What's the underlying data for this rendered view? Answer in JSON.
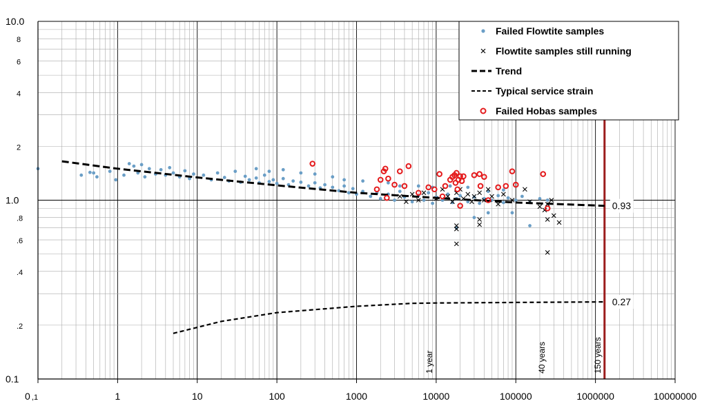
{
  "chart_data": {
    "type": "scatter",
    "x_scale": "log",
    "y_scale": "log",
    "xlim": [
      0.1,
      10000000
    ],
    "ylim": [
      0.1,
      10.0
    ],
    "grid": true,
    "legend_position": "top-right",
    "x_tick_labels": [
      "0,1",
      "1",
      "10",
      "100",
      "1000",
      "10000",
      "100000",
      "1000000",
      "10000000"
    ],
    "x_tick_values": [
      0.1,
      1,
      10,
      100,
      1000,
      10000,
      100000,
      1000000,
      10000000
    ],
    "y_tick_labels": [
      "0.1",
      ".2",
      ".4",
      ".6",
      ".8",
      "1.0",
      "2",
      "4",
      "6",
      "8",
      "10.0"
    ],
    "y_tick_values": [
      0.1,
      0.2,
      0.4,
      0.6,
      0.8,
      1.0,
      2,
      4,
      6,
      8,
      10
    ],
    "y_tick_small": [
      false,
      true,
      true,
      true,
      true,
      false,
      true,
      true,
      true,
      true,
      false
    ],
    "colors": {
      "failed_flowtite": "#6a9ec6",
      "running": "#000000",
      "hobas": "#e41a1c",
      "marker_line": "#9b1c1c",
      "grid": "#a8a8a8"
    },
    "series": [
      {
        "name": "Failed Flowtite samples",
        "kind": "points",
        "points": [
          [
            0.1,
            1.5
          ],
          [
            0.35,
            1.38
          ],
          [
            0.45,
            1.43
          ],
          [
            0.5,
            1.42
          ],
          [
            0.55,
            1.35
          ],
          [
            0.8,
            1.45
          ],
          [
            0.95,
            1.3
          ],
          [
            1.2,
            1.38
          ],
          [
            1.4,
            1.6
          ],
          [
            1.6,
            1.55
          ],
          [
            1.8,
            1.42
          ],
          [
            2,
            1.58
          ],
          [
            2.2,
            1.35
          ],
          [
            2.5,
            1.5
          ],
          [
            3,
            1.4
          ],
          [
            3.5,
            1.48
          ],
          [
            4,
            1.38
          ],
          [
            4.5,
            1.52
          ],
          [
            5,
            1.42
          ],
          [
            6,
            1.35
          ],
          [
            7,
            1.46
          ],
          [
            8,
            1.32
          ],
          [
            9,
            1.4
          ],
          [
            12,
            1.38
          ],
          [
            15,
            1.3
          ],
          [
            18,
            1.42
          ],
          [
            22,
            1.34
          ],
          [
            25,
            1.28
          ],
          [
            30,
            1.45
          ],
          [
            35,
            1.26
          ],
          [
            40,
            1.36
          ],
          [
            45,
            1.3
          ],
          [
            55,
            1.33
          ],
          [
            60,
            1.25
          ],
          [
            70,
            1.38
          ],
          [
            80,
            1.27
          ],
          [
            90,
            1.3
          ],
          [
            100,
            1.24
          ],
          [
            120,
            1.32
          ],
          [
            140,
            1.22
          ],
          [
            160,
            1.28
          ],
          [
            200,
            1.26
          ],
          [
            250,
            1.2
          ],
          [
            300,
            1.25
          ],
          [
            350,
            1.17
          ],
          [
            400,
            1.22
          ],
          [
            500,
            1.18
          ],
          [
            600,
            1.13
          ],
          [
            700,
            1.2
          ],
          [
            800,
            1.1
          ],
          [
            900,
            1.16
          ],
          [
            1000,
            1.08
          ],
          [
            1200,
            1.12
          ],
          [
            1500,
            1.05
          ],
          [
            1800,
            1.1
          ],
          [
            2000,
            1.02
          ],
          [
            2500,
            1.08
          ],
          [
            3000,
            1.0
          ],
          [
            3500,
            1.12
          ],
          [
            4000,
            1.04
          ],
          [
            5000,
            0.98
          ],
          [
            6000,
            1.06
          ],
          [
            7000,
            1.0
          ],
          [
            8000,
            1.1
          ],
          [
            9000,
            0.96
          ],
          [
            10000,
            1.04
          ],
          [
            12000,
            1.0
          ],
          [
            14000,
            1.08
          ],
          [
            16000,
            0.97
          ],
          [
            18000,
            1.02
          ],
          [
            20000,
            1.06
          ],
          [
            25000,
            0.98
          ],
          [
            30000,
            1.04
          ],
          [
            35000,
            0.96
          ],
          [
            40000,
            1.02
          ],
          [
            50000,
            1.0
          ],
          [
            60000,
            1.06
          ],
          [
            70000,
            0.97
          ],
          [
            80000,
            1.03
          ],
          [
            100000,
            1.0
          ],
          [
            120000,
            1.05
          ],
          [
            150000,
            0.97
          ],
          [
            200000,
            1.02
          ],
          [
            250000,
            1.0
          ],
          [
            18000,
            0.7
          ],
          [
            30000,
            0.8
          ],
          [
            45000,
            0.85
          ],
          [
            90000,
            0.85
          ],
          [
            150000,
            0.72
          ],
          [
            55,
            1.5
          ],
          [
            80,
            1.45
          ],
          [
            120,
            1.48
          ],
          [
            200,
            1.42
          ],
          [
            300,
            1.4
          ],
          [
            500,
            1.35
          ],
          [
            700,
            1.3
          ],
          [
            1200,
            1.28
          ],
          [
            2500,
            1.25
          ],
          [
            3500,
            1.2
          ],
          [
            6000,
            1.2
          ],
          [
            9000,
            1.18
          ],
          [
            15000,
            1.2
          ],
          [
            25000,
            1.18
          ],
          [
            45000,
            1.12
          ],
          [
            70000,
            1.14
          ]
        ]
      },
      {
        "name": "Flowtite samples still running",
        "kind": "crosses",
        "points": [
          [
            3500,
            1.05
          ],
          [
            4200,
            0.98
          ],
          [
            5000,
            1.08
          ],
          [
            6000,
            1.0
          ],
          [
            7000,
            1.1
          ],
          [
            10000,
            1.02
          ],
          [
            12000,
            1.15
          ],
          [
            14000,
            1.05
          ],
          [
            16000,
            0.98
          ],
          [
            18000,
            1.1
          ],
          [
            20000,
            1.15
          ],
          [
            22000,
            1.02
          ],
          [
            25000,
            1.08
          ],
          [
            28000,
            0.98
          ],
          [
            30000,
            1.05
          ],
          [
            35000,
            1.1
          ],
          [
            40000,
            1.0
          ],
          [
            45000,
            1.15
          ],
          [
            50000,
            1.05
          ],
          [
            60000,
            0.95
          ],
          [
            70000,
            1.08
          ],
          [
            90000,
            1.0
          ],
          [
            130000,
            1.15
          ],
          [
            150000,
            0.98
          ],
          [
            250000,
            0.95
          ],
          [
            280000,
            1.0
          ],
          [
            300000,
            0.82
          ],
          [
            350000,
            0.75
          ],
          [
            250000,
            0.78
          ],
          [
            18000,
            0.72
          ],
          [
            18000,
            0.69
          ],
          [
            18000,
            0.57
          ],
          [
            35000,
            0.78
          ],
          [
            35000,
            0.73
          ],
          [
            250000,
            0.51
          ],
          [
            200000,
            0.92
          ],
          [
            230000,
            0.88
          ]
        ]
      },
      {
        "name": "Trend",
        "kind": "thick-dashed",
        "points": [
          [
            0.2,
            1.65
          ],
          [
            1,
            1.5
          ],
          [
            10,
            1.34
          ],
          [
            100,
            1.21
          ],
          [
            1000,
            1.1
          ],
          [
            10000,
            1.03
          ],
          [
            100000,
            0.97
          ],
          [
            1300000,
            0.93
          ]
        ]
      },
      {
        "name": "Typical service strain",
        "kind": "dashed",
        "points": [
          [
            5,
            0.18
          ],
          [
            20,
            0.21
          ],
          [
            100,
            0.235
          ],
          [
            1000,
            0.255
          ],
          [
            5000,
            0.265
          ],
          [
            10000,
            0.266
          ],
          [
            100000,
            0.268
          ],
          [
            1300000,
            0.27
          ]
        ]
      },
      {
        "name": "Failed Hobas samples",
        "kind": "circles",
        "points": [
          [
            280,
            1.6
          ],
          [
            1800,
            1.15
          ],
          [
            2000,
            1.3
          ],
          [
            2200,
            1.45
          ],
          [
            2300,
            1.5
          ],
          [
            2400,
            1.03
          ],
          [
            2500,
            1.32
          ],
          [
            3000,
            1.22
          ],
          [
            3500,
            1.45
          ],
          [
            4000,
            1.2
          ],
          [
            4500,
            1.55
          ],
          [
            6000,
            1.1
          ],
          [
            8000,
            1.18
          ],
          [
            9500,
            1.15
          ],
          [
            11000,
            1.4
          ],
          [
            12000,
            1.05
          ],
          [
            13000,
            1.2
          ],
          [
            15000,
            1.3
          ],
          [
            16000,
            1.35
          ],
          [
            17000,
            1.38
          ],
          [
            17500,
            1.25
          ],
          [
            18000,
            1.42
          ],
          [
            18500,
            1.15
          ],
          [
            19000,
            1.3
          ],
          [
            20000,
            1.36
          ],
          [
            21000,
            1.28
          ],
          [
            22000,
            1.36
          ],
          [
            20000,
            0.93
          ],
          [
            30000,
            1.38
          ],
          [
            35000,
            1.4
          ],
          [
            36000,
            1.2
          ],
          [
            40000,
            1.35
          ],
          [
            45000,
            1.0
          ],
          [
            60000,
            1.18
          ],
          [
            75000,
            1.2
          ],
          [
            90000,
            1.45
          ],
          [
            100000,
            1.22
          ],
          [
            220000,
            1.4
          ],
          [
            250000,
            0.9
          ]
        ]
      }
    ],
    "annotations": [
      {
        "text": "0.93",
        "x": 1300000,
        "y": 0.93
      },
      {
        "text": "0.27",
        "x": 1300000,
        "y": 0.27
      }
    ],
    "vertical_markers": [
      {
        "label": "1 year",
        "x": 10000,
        "style": "thin"
      },
      {
        "label": "40 years",
        "x": 260000,
        "style": "thin"
      },
      {
        "label": "150 years",
        "x": 1300000,
        "style": "thick"
      }
    ]
  }
}
